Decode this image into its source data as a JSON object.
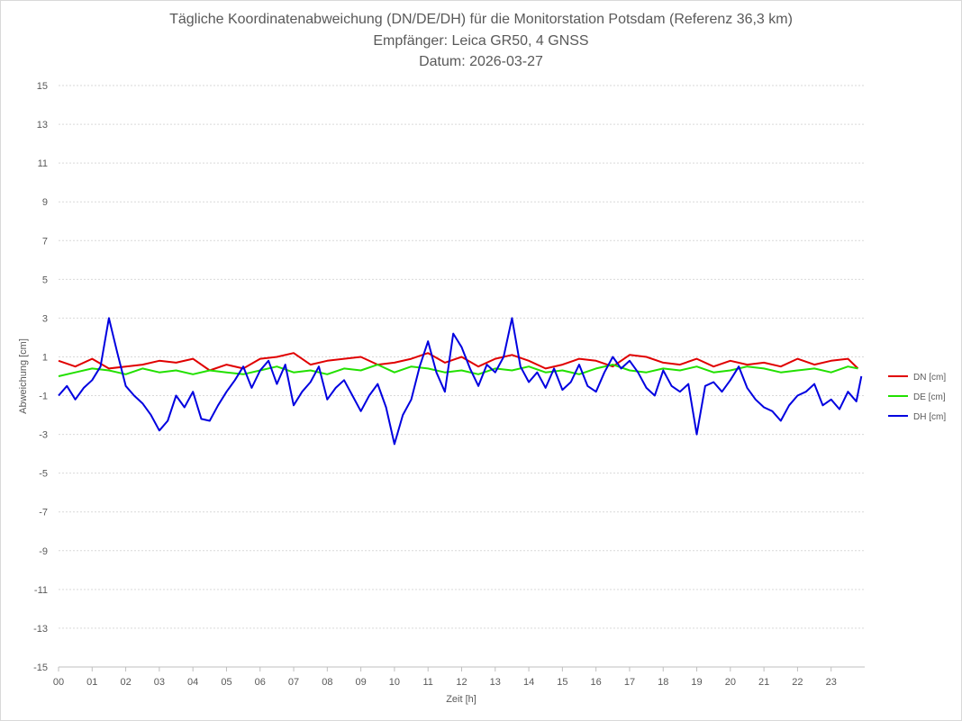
{
  "chart_data": {
    "type": "line",
    "title_lines": [
      "Tägliche Koordinatenabweichung (DN/DE/DH) für die Monitorstation Potsdam (Referenz 36,3 km)",
      "Empfänger: Leica GR50, 4 GNSS",
      "Datum: 2026-03-27"
    ],
    "xlabel": "Zeit [h]",
    "ylabel": "Abweichung [cm]",
    "x_ticks": [
      "00",
      "01",
      "02",
      "03",
      "04",
      "05",
      "06",
      "07",
      "08",
      "09",
      "10",
      "11",
      "12",
      "13",
      "14",
      "15",
      "16",
      "17",
      "18",
      "19",
      "20",
      "21",
      "22",
      "23"
    ],
    "y_ticks": [
      "15",
      "13",
      "11",
      "9",
      "7",
      "5",
      "3",
      "1",
      "-1",
      "-3",
      "-5",
      "-7",
      "-9",
      "-11",
      "-13",
      "-15"
    ],
    "xlim": [
      0,
      24
    ],
    "ylim": [
      -15,
      15
    ],
    "grid": true,
    "legend_position": "right",
    "series": [
      {
        "name": "DN [cm]",
        "color": "#e00000",
        "x": [
          0,
          0.5,
          1,
          1.5,
          2,
          2.5,
          3,
          3.5,
          4,
          4.5,
          5,
          5.5,
          6,
          6.5,
          7,
          7.5,
          8,
          8.5,
          9,
          9.5,
          10,
          10.5,
          11,
          11.5,
          12,
          12.5,
          13,
          13.5,
          14,
          14.5,
          15,
          15.5,
          16,
          16.5,
          17,
          17.5,
          18,
          18.5,
          19,
          19.5,
          20,
          20.5,
          21,
          21.5,
          22,
          22.5,
          23,
          23.5,
          23.8
        ],
        "values": [
          0.8,
          0.5,
          0.9,
          0.4,
          0.5,
          0.6,
          0.8,
          0.7,
          0.9,
          0.3,
          0.6,
          0.4,
          0.9,
          1.0,
          1.2,
          0.6,
          0.8,
          0.9,
          1.0,
          0.6,
          0.7,
          0.9,
          1.2,
          0.7,
          1.0,
          0.5,
          0.9,
          1.1,
          0.8,
          0.4,
          0.6,
          0.9,
          0.8,
          0.5,
          1.1,
          1.0,
          0.7,
          0.6,
          0.9,
          0.5,
          0.8,
          0.6,
          0.7,
          0.5,
          0.9,
          0.6,
          0.8,
          0.9,
          0.4
        ]
      },
      {
        "name": "DE [cm]",
        "color": "#22e000",
        "x": [
          0,
          0.5,
          1,
          1.5,
          2,
          2.5,
          3,
          3.5,
          4,
          4.5,
          5,
          5.5,
          6,
          6.5,
          7,
          7.5,
          8,
          8.5,
          9,
          9.5,
          10,
          10.5,
          11,
          11.5,
          12,
          12.5,
          13,
          13.5,
          14,
          14.5,
          15,
          15.5,
          16,
          16.5,
          17,
          17.5,
          18,
          18.5,
          19,
          19.5,
          20,
          20.5,
          21,
          21.5,
          22,
          22.5,
          23,
          23.5,
          23.8
        ],
        "values": [
          0.0,
          0.2,
          0.4,
          0.3,
          0.1,
          0.4,
          0.2,
          0.3,
          0.1,
          0.3,
          0.2,
          0.1,
          0.3,
          0.5,
          0.2,
          0.3,
          0.1,
          0.4,
          0.3,
          0.6,
          0.2,
          0.5,
          0.4,
          0.2,
          0.3,
          0.1,
          0.4,
          0.3,
          0.5,
          0.2,
          0.3,
          0.1,
          0.4,
          0.6,
          0.3,
          0.2,
          0.4,
          0.3,
          0.5,
          0.2,
          0.3,
          0.5,
          0.4,
          0.2,
          0.3,
          0.4,
          0.2,
          0.5,
          0.4
        ]
      },
      {
        "name": "DH [cm]",
        "color": "#0000e0",
        "x": [
          0,
          0.25,
          0.5,
          0.75,
          1,
          1.25,
          1.5,
          1.75,
          2,
          2.25,
          2.5,
          2.75,
          3,
          3.25,
          3.5,
          3.75,
          4,
          4.25,
          4.5,
          4.75,
          5,
          5.25,
          5.5,
          5.75,
          6,
          6.25,
          6.5,
          6.75,
          7,
          7.25,
          7.5,
          7.75,
          8,
          8.25,
          8.5,
          8.75,
          9,
          9.25,
          9.5,
          9.75,
          10,
          10.25,
          10.5,
          10.75,
          11,
          11.25,
          11.5,
          11.75,
          12,
          12.25,
          12.5,
          12.75,
          13,
          13.25,
          13.5,
          13.75,
          14,
          14.25,
          14.5,
          14.75,
          15,
          15.25,
          15.5,
          15.75,
          16,
          16.25,
          16.5,
          16.75,
          17,
          17.25,
          17.5,
          17.75,
          18,
          18.25,
          18.5,
          18.75,
          19,
          19.25,
          19.5,
          19.75,
          20,
          20.25,
          20.5,
          20.75,
          21,
          21.25,
          21.5,
          21.75,
          22,
          22.25,
          22.5,
          22.75,
          23,
          23.25,
          23.5,
          23.75,
          23.9
        ],
        "values": [
          -1.0,
          -0.5,
          -1.2,
          -0.6,
          -0.2,
          0.5,
          3.0,
          1.2,
          -0.5,
          -1.0,
          -1.4,
          -2.0,
          -2.8,
          -2.3,
          -1.0,
          -1.6,
          -0.8,
          -2.2,
          -2.3,
          -1.5,
          -0.8,
          -0.2,
          0.5,
          -0.6,
          0.3,
          0.8,
          -0.4,
          0.6,
          -1.5,
          -0.8,
          -0.3,
          0.5,
          -1.2,
          -0.6,
          -0.2,
          -1.0,
          -1.8,
          -1.0,
          -0.4,
          -1.6,
          -3.5,
          -2.0,
          -1.2,
          0.5,
          1.8,
          0.2,
          -0.8,
          2.2,
          1.5,
          0.4,
          -0.5,
          0.6,
          0.2,
          1.0,
          3.0,
          0.5,
          -0.3,
          0.2,
          -0.6,
          0.4,
          -0.7,
          -0.3,
          0.6,
          -0.5,
          -0.8,
          0.2,
          1.0,
          0.4,
          0.8,
          0.2,
          -0.6,
          -1.0,
          0.3,
          -0.5,
          -0.8,
          -0.4,
          -3.0,
          -0.5,
          -0.3,
          -0.8,
          -0.2,
          0.5,
          -0.6,
          -1.2,
          -1.6,
          -1.8,
          -2.3,
          -1.5,
          -1.0,
          -0.8,
          -0.4,
          -1.5,
          -1.2,
          -1.7,
          -0.8,
          -1.3,
          0.0
        ]
      }
    ]
  }
}
